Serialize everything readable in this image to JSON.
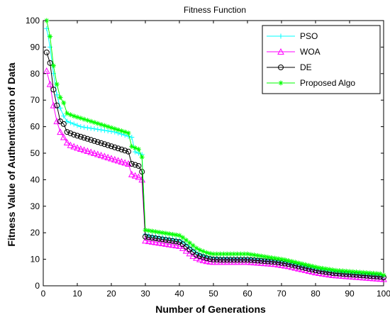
{
  "chart_data": {
    "type": "line",
    "title": "Fitness Function",
    "xlabel": "Number of Generations",
    "ylabel": "Fitness Value of Authentication of Data",
    "xlim": [
      0,
      100
    ],
    "ylim": [
      0,
      100
    ],
    "xticks": [
      0,
      10,
      20,
      30,
      40,
      50,
      60,
      70,
      80,
      90,
      100
    ],
    "yticks": [
      0,
      10,
      20,
      30,
      40,
      50,
      60,
      70,
      80,
      90,
      100
    ],
    "grid": false,
    "legend_position": "top-right",
    "x": [
      1,
      2,
      3,
      4,
      5,
      6,
      7,
      8,
      9,
      10,
      11,
      12,
      13,
      14,
      15,
      16,
      17,
      18,
      19,
      20,
      21,
      22,
      23,
      24,
      25,
      26,
      27,
      28,
      29,
      30,
      31,
      32,
      33,
      34,
      35,
      36,
      37,
      38,
      39,
      40,
      41,
      42,
      43,
      44,
      45,
      46,
      47,
      48,
      49,
      50,
      51,
      52,
      53,
      54,
      55,
      56,
      57,
      58,
      59,
      60,
      61,
      62,
      63,
      64,
      65,
      66,
      67,
      68,
      69,
      70,
      71,
      72,
      73,
      74,
      75,
      76,
      77,
      78,
      79,
      80,
      81,
      82,
      83,
      84,
      85,
      86,
      87,
      88,
      89,
      90,
      91,
      92,
      93,
      94,
      95,
      96,
      97,
      98,
      99,
      100
    ],
    "series": [
      {
        "name": "PSO",
        "color": "#00ffff",
        "marker": "plus",
        "values": [
          97,
          90,
          80,
          72,
          67,
          64,
          62,
          61.5,
          61,
          60.5,
          60,
          59.8,
          59.6,
          59.4,
          59.2,
          59,
          58.8,
          58.6,
          58.4,
          58.2,
          58,
          57.6,
          57.2,
          56.8,
          56.4,
          56,
          50.5,
          50,
          49.5,
          19.5,
          19,
          18.8,
          18.6,
          18.4,
          18.2,
          18,
          17.8,
          17.6,
          17.4,
          17.2,
          16.5,
          15.5,
          14.5,
          13.5,
          12.5,
          12,
          11.5,
          11,
          10.8,
          10.6,
          10.5,
          10.5,
          10.4,
          10.4,
          10.3,
          10.3,
          10.3,
          10.3,
          10.3,
          10.3,
          10.2,
          10.1,
          10,
          9.9,
          9.8,
          9.7,
          9.6,
          9.5,
          9.3,
          9.1,
          8.9,
          8.7,
          8.4,
          8.1,
          7.8,
          7.5,
          7.2,
          6.9,
          6.6,
          6.3,
          6.1,
          5.9,
          5.7,
          5.5,
          5.3,
          5.2,
          5.1,
          5,
          4.9,
          4.8,
          4.7,
          4.6,
          4.5,
          4.4,
          4.3,
          4.2,
          4.1,
          4,
          3.9,
          3.6
        ]
      },
      {
        "name": "WOA",
        "color": "#ff00ff",
        "marker": "triangle",
        "values": [
          81,
          76,
          68,
          62,
          58,
          56,
          54,
          53,
          52.5,
          52,
          51.6,
          51.2,
          50.8,
          50.4,
          50,
          49.6,
          49.2,
          48.8,
          48.4,
          48,
          47.6,
          47.2,
          46.8,
          46.4,
          46,
          42,
          41.5,
          41,
          40,
          17,
          16.8,
          16.6,
          16.4,
          16.2,
          16,
          15.8,
          15.6,
          15.4,
          15.2,
          15,
          14.2,
          13.2,
          12.2,
          11.2,
          10.5,
          10,
          9.6,
          9.3,
          9.1,
          9,
          9,
          9,
          9,
          9,
          9,
          9,
          9,
          9,
          9,
          9,
          8.9,
          8.8,
          8.7,
          8.6,
          8.5,
          8.4,
          8.3,
          8.2,
          8,
          7.8,
          7.6,
          7.4,
          7.1,
          6.8,
          6.5,
          6.2,
          5.9,
          5.6,
          5.3,
          5,
          4.8,
          4.6,
          4.4,
          4.2,
          4,
          3.9,
          3.8,
          3.7,
          3.6,
          3.5,
          3.4,
          3.3,
          3.2,
          3.1,
          3,
          2.9,
          2.8,
          2.7,
          2.6,
          2.5
        ]
      },
      {
        "name": "DE",
        "color": "#000000",
        "marker": "circle",
        "values": [
          88,
          84,
          74,
          68,
          62,
          61,
          58,
          57.5,
          57,
          56.6,
          56.2,
          55.8,
          55.4,
          55,
          54.6,
          54.2,
          53.8,
          53.4,
          53,
          52.6,
          52.2,
          51.8,
          51.4,
          51,
          50.6,
          46,
          45.6,
          45.2,
          43,
          18.5,
          18.3,
          18.1,
          17.9,
          17.7,
          17.5,
          17.3,
          17.1,
          16.9,
          16.7,
          16.5,
          15.7,
          14.7,
          13.7,
          12.7,
          11.7,
          11.2,
          10.8,
          10.4,
          10.1,
          9.9,
          9.9,
          9.8,
          9.8,
          9.8,
          9.8,
          9.8,
          9.8,
          9.8,
          9.8,
          9.8,
          9.7,
          9.6,
          9.5,
          9.4,
          9.3,
          9.2,
          9.1,
          9,
          8.8,
          8.6,
          8.4,
          8.2,
          7.9,
          7.6,
          7.3,
          7,
          6.7,
          6.4,
          6.1,
          5.8,
          5.6,
          5.4,
          5.2,
          5,
          4.8,
          4.7,
          4.6,
          4.5,
          4.4,
          4.3,
          4.2,
          4.1,
          4,
          3.9,
          3.8,
          3.7,
          3.6,
          3.5,
          3.4,
          3.2
        ]
      },
      {
        "name": "Proposed Algo",
        "color": "#00ff00",
        "marker": "asterisk",
        "values": [
          100,
          94,
          83,
          76,
          71,
          69,
          65,
          64.5,
          64,
          63.6,
          63.2,
          62.8,
          62.4,
          62,
          61.6,
          61.2,
          60.8,
          60.4,
          60,
          59.6,
          59.2,
          58.8,
          58.4,
          58,
          57.6,
          52.5,
          52,
          51.5,
          48.5,
          21,
          20.8,
          20.6,
          20.4,
          20.2,
          20,
          19.8,
          19.6,
          19.4,
          19.2,
          19,
          18.2,
          17.2,
          16.2,
          15.2,
          14.2,
          13.5,
          13,
          12.5,
          12.2,
          12,
          12,
          12,
          12,
          12,
          12,
          12,
          12,
          12,
          12,
          12,
          11.8,
          11.6,
          11.4,
          11.2,
          11,
          10.8,
          10.6,
          10.4,
          10.2,
          10,
          9.8,
          9.5,
          9.2,
          8.9,
          8.6,
          8.3,
          8,
          7.7,
          7.4,
          7.1,
          6.8,
          6.6,
          6.4,
          6.2,
          6,
          5.8,
          5.7,
          5.6,
          5.5,
          5.4,
          5.3,
          5.2,
          5.1,
          5,
          4.9,
          4.8,
          4.7,
          4.6,
          4.5,
          4
        ]
      }
    ]
  }
}
